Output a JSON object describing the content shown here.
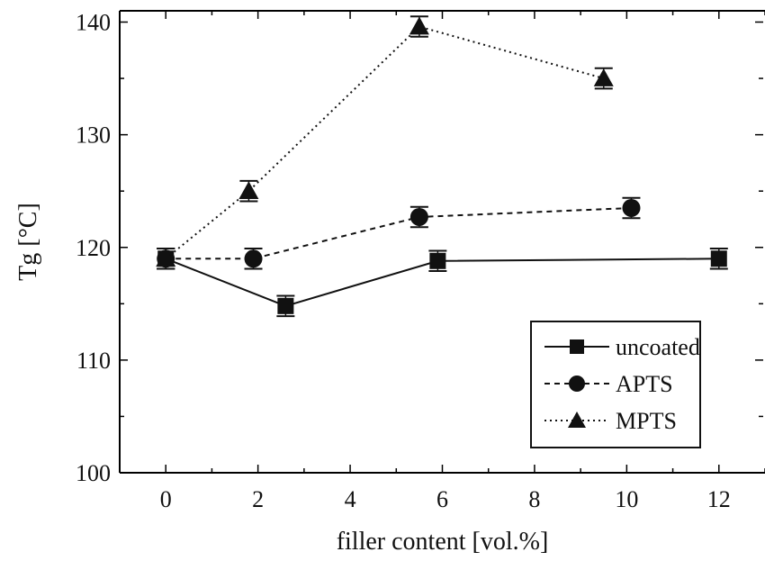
{
  "chart_data": {
    "type": "line",
    "xlabel": "filler content [vol.%]",
    "ylabel": "Tg [°C]",
    "xlim": [
      -1,
      13
    ],
    "ylim": [
      100,
      141
    ],
    "x_ticks": [
      0,
      2,
      4,
      6,
      8,
      10,
      12
    ],
    "y_ticks": [
      100,
      110,
      120,
      130,
      140
    ],
    "grid": false,
    "legend_position": "bottom-right",
    "series": [
      {
        "name": "uncoated",
        "marker": "square",
        "line_style": "solid",
        "x": [
          0,
          2.6,
          5.9,
          12
        ],
        "y": [
          119,
          114.8,
          118.8,
          119
        ],
        "error": [
          0.9,
          0.9,
          0.9,
          0.9
        ]
      },
      {
        "name": "APTS",
        "marker": "circle",
        "line_style": "dashed",
        "x": [
          0,
          1.9,
          5.5,
          10.1
        ],
        "y": [
          119,
          119,
          122.7,
          123.5
        ],
        "error": [
          0.9,
          0.9,
          0.9,
          0.9
        ]
      },
      {
        "name": "MPTS",
        "marker": "triangle",
        "line_style": "dotted",
        "x": [
          0,
          1.8,
          5.5,
          9.5
        ],
        "y": [
          119,
          125,
          139.6,
          135
        ],
        "error": [
          0.9,
          0.9,
          0.9,
          0.9
        ]
      }
    ]
  }
}
